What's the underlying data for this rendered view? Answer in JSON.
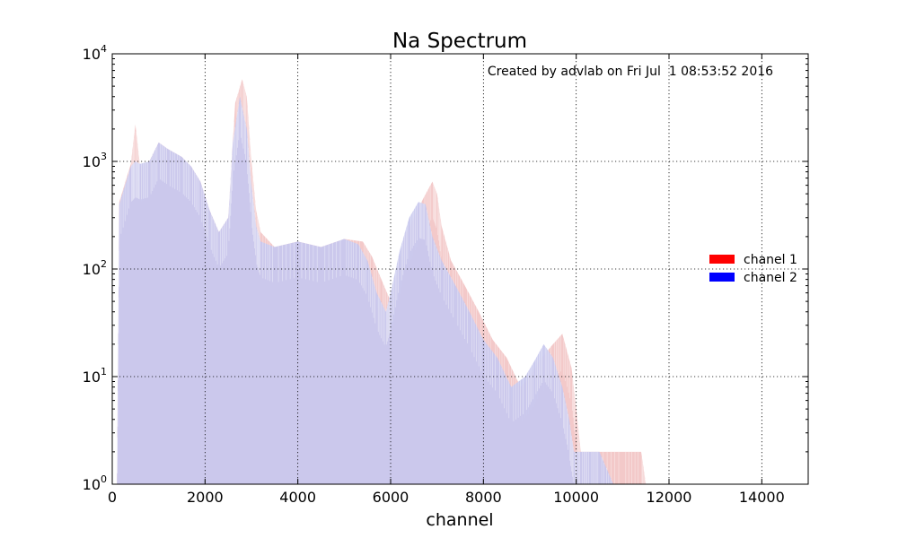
{
  "chart_data": {
    "type": "area",
    "title": "Na Spectrum",
    "xlabel": "channel",
    "ylabel": "",
    "annotation": "Created by advlab on Fri Jul  1 08:53:52 2016",
    "x_scale": "linear",
    "y_scale": "log",
    "xlim": [
      0,
      15000
    ],
    "ylim": [
      1,
      10000
    ],
    "x_ticks": [
      0,
      2000,
      4000,
      6000,
      8000,
      10000,
      12000,
      14000
    ],
    "x_tick_labels": [
      "0",
      "2000",
      "4000",
      "6000",
      "8000",
      "10000",
      "12000",
      "14000"
    ],
    "y_ticks": [
      1,
      10,
      100,
      1000,
      10000
    ],
    "y_tick_labels": [
      {
        "base": "10",
        "exp": "0"
      },
      {
        "base": "10",
        "exp": "1"
      },
      {
        "base": "10",
        "exp": "2"
      },
      {
        "base": "10",
        "exp": "3"
      },
      {
        "base": "10",
        "exp": "4"
      }
    ],
    "grid": true,
    "legend_position": "right",
    "series": [
      {
        "name": "chanel 1",
        "color": "#ff0000",
        "fill_color": "#f2c6c6",
        "x": [
          0,
          100,
          150,
          400,
          500,
          600,
          800,
          1000,
          1200,
          1500,
          1700,
          1900,
          2100,
          2300,
          2500,
          2650,
          2800,
          2900,
          3000,
          3100,
          3200,
          3500,
          4000,
          4500,
          5000,
          5400,
          5600,
          5800,
          6000,
          6100,
          6300,
          6500,
          6700,
          6900,
          7000,
          7100,
          7300,
          7600,
          7900,
          8200,
          8500,
          8800,
          9000,
          9200,
          9500,
          9700,
          9900,
          10000,
          10100,
          10500,
          11000,
          11400,
          11500
        ],
        "y": [
          1,
          1,
          420,
          950,
          2200,
          900,
          1000,
          1500,
          1300,
          1100,
          900,
          650,
          350,
          220,
          300,
          3500,
          5800,
          4000,
          1000,
          350,
          220,
          160,
          180,
          160,
          190,
          180,
          130,
          80,
          50,
          80,
          200,
          300,
          450,
          650,
          500,
          250,
          120,
          70,
          40,
          22,
          15,
          8,
          10,
          14,
          20,
          25,
          12,
          5,
          2,
          2,
          2,
          2,
          1
        ]
      },
      {
        "name": "chanel 2",
        "color": "#0000ff",
        "fill_color": "#c8c8ee",
        "x": [
          0,
          100,
          150,
          400,
          500,
          600,
          800,
          1000,
          1200,
          1500,
          1700,
          1900,
          2100,
          2300,
          2500,
          2600,
          2750,
          2900,
          3000,
          3100,
          3200,
          3500,
          4000,
          4500,
          5000,
          5300,
          5500,
          5700,
          5900,
          6000,
          6200,
          6400,
          6600,
          6750,
          6900,
          7100,
          7400,
          7700,
          8000,
          8300,
          8600,
          8900,
          9100,
          9300,
          9500,
          9700,
          9850,
          9950,
          10100,
          10300,
          10500,
          10800,
          11000
        ],
        "y": [
          1,
          1,
          400,
          900,
          1000,
          950,
          1000,
          1500,
          1300,
          1100,
          900,
          650,
          350,
          220,
          300,
          1500,
          4000,
          2000,
          600,
          250,
          180,
          160,
          180,
          160,
          190,
          170,
          120,
          60,
          40,
          60,
          150,
          300,
          420,
          400,
          200,
          120,
          70,
          40,
          22,
          15,
          8,
          10,
          14,
          20,
          15,
          8,
          4,
          2,
          2,
          2,
          2,
          1,
          1
        ]
      }
    ]
  }
}
